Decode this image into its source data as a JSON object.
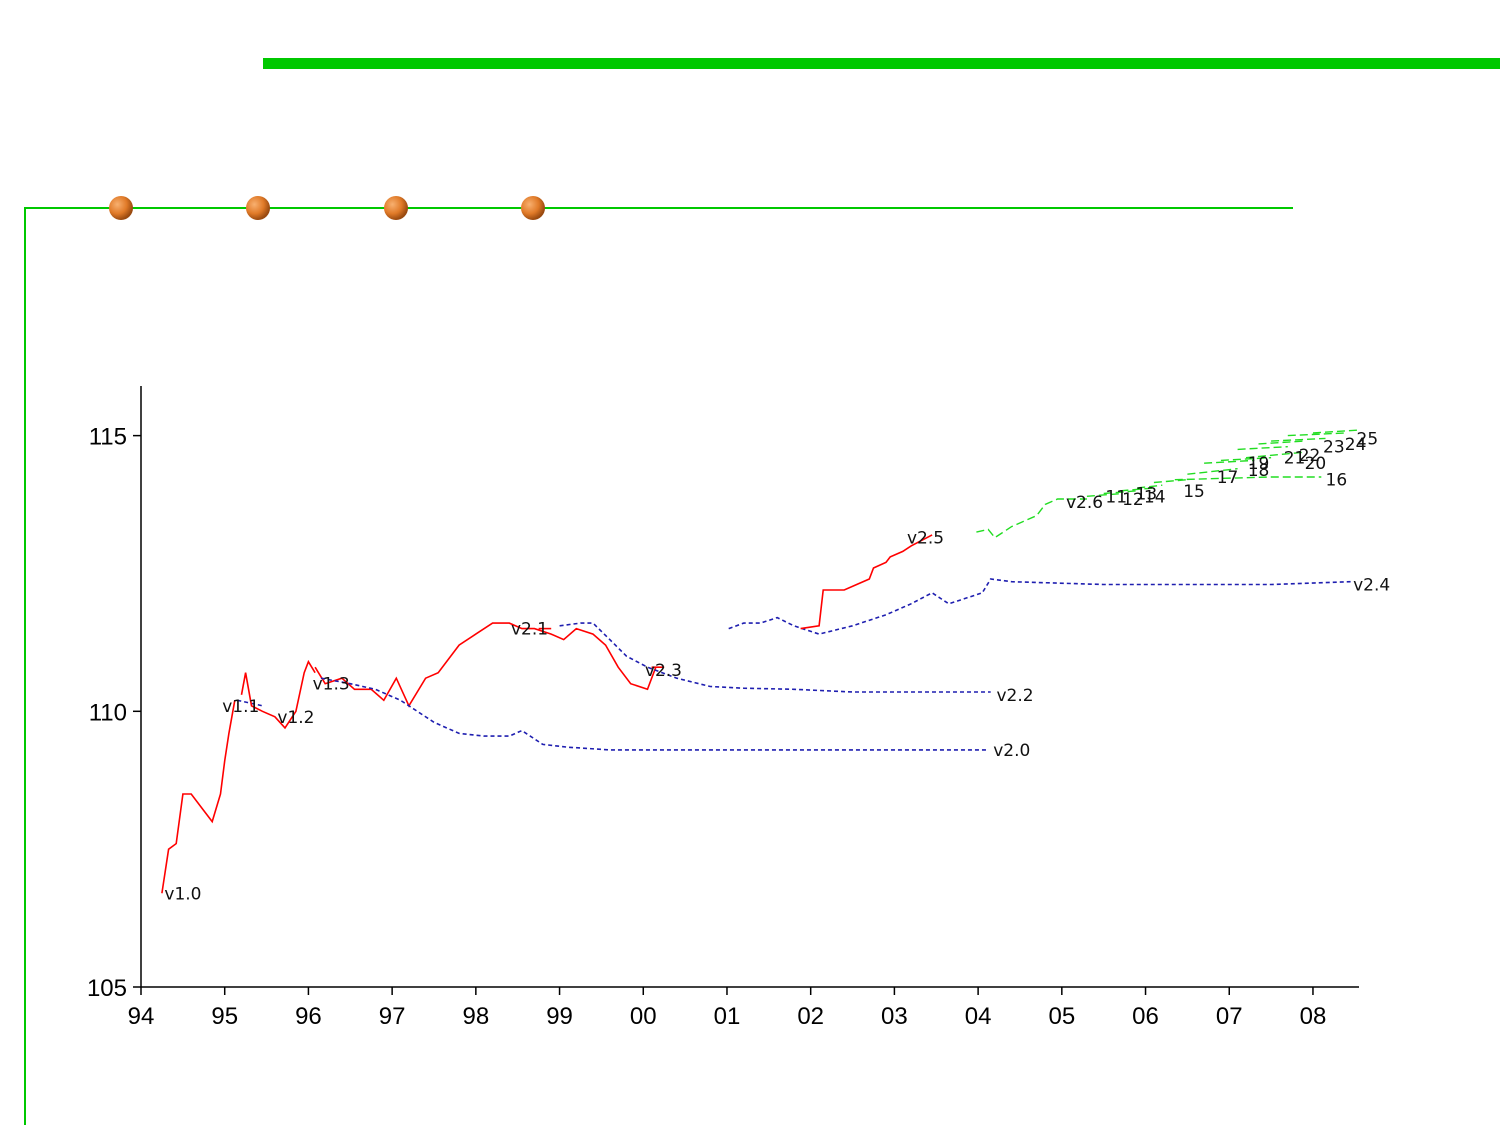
{
  "colors": {
    "slide_green": "#00c800",
    "bullet": "#e07a28",
    "axis": "#000000",
    "red_series": "#ff0000",
    "blue_series": "#1f1fb0",
    "green_series": "#22dd22"
  },
  "chart_data": {
    "type": "line",
    "title": "",
    "xlabel": "",
    "ylabel": "",
    "x_domain": [
      1994,
      2008.55
    ],
    "ylim": [
      105,
      115.9
    ],
    "x_ticks": [
      {
        "x": 1994,
        "label": "94"
      },
      {
        "x": 1995,
        "label": "95"
      },
      {
        "x": 1996,
        "label": "96"
      },
      {
        "x": 1997,
        "label": "97"
      },
      {
        "x": 1998,
        "label": "98"
      },
      {
        "x": 1999,
        "label": "99"
      },
      {
        "x": 2000,
        "label": "00"
      },
      {
        "x": 2001,
        "label": "01"
      },
      {
        "x": 2002,
        "label": "02"
      },
      {
        "x": 2003,
        "label": "03"
      },
      {
        "x": 2004,
        "label": "04"
      },
      {
        "x": 2005,
        "label": "05"
      },
      {
        "x": 2006,
        "label": "06"
      },
      {
        "x": 2007,
        "label": "07"
      },
      {
        "x": 2008,
        "label": "08"
      }
    ],
    "y_ticks": [
      {
        "y": 105,
        "label": "105"
      },
      {
        "y": 110,
        "label": "110"
      },
      {
        "y": 115,
        "label": "115"
      }
    ],
    "grid": false,
    "series": [
      {
        "name": "v1.0",
        "style": "red-solid",
        "label_at": [
          1994.28,
          106.7
        ],
        "points": [
          [
            1994.25,
            106.7
          ],
          [
            1994.33,
            107.5
          ],
          [
            1994.42,
            107.6
          ],
          [
            1994.5,
            108.5
          ],
          [
            1994.6,
            108.5
          ],
          [
            1994.75,
            108.2
          ],
          [
            1994.85,
            108.0
          ],
          [
            1994.95,
            108.5
          ],
          [
            1995.0,
            109.1
          ],
          [
            1995.05,
            109.6
          ],
          [
            1995.12,
            110.2
          ]
        ]
      },
      {
        "name": "v1.1",
        "style": "blue-dashed",
        "label_at": [
          1994.97,
          110.1
        ],
        "points": [
          [
            1995.15,
            110.2
          ],
          [
            1995.3,
            110.15
          ],
          [
            1995.45,
            110.1
          ]
        ]
      },
      {
        "name": "v1.2",
        "style": "red-solid",
        "label_at": [
          1995.63,
          109.9
        ],
        "points": [
          [
            1995.2,
            110.3
          ],
          [
            1995.25,
            110.7
          ],
          [
            1995.32,
            110.1
          ],
          [
            1995.45,
            110.0
          ],
          [
            1995.6,
            109.9
          ],
          [
            1995.72,
            109.7
          ],
          [
            1995.85,
            110.0
          ],
          [
            1995.95,
            110.7
          ],
          [
            1996.0,
            110.9
          ],
          [
            1996.08,
            110.7
          ]
        ]
      },
      {
        "name": "v1.3",
        "style": "red-solid",
        "label_at": [
          1996.05,
          110.5
        ],
        "points": [
          [
            1996.08,
            110.8
          ],
          [
            1996.2,
            110.5
          ],
          [
            1996.4,
            110.6
          ],
          [
            1996.55,
            110.4
          ],
          [
            1996.75,
            110.4
          ],
          [
            1996.9,
            110.2
          ],
          [
            1997.05,
            110.6
          ],
          [
            1997.2,
            110.1
          ],
          [
            1997.4,
            110.6
          ],
          [
            1997.55,
            110.7
          ],
          [
            1997.8,
            111.2
          ],
          [
            1998.0,
            111.4
          ],
          [
            1998.2,
            111.6
          ],
          [
            1998.4,
            111.6
          ],
          [
            1998.55,
            111.5
          ],
          [
            1998.7,
            111.5
          ],
          [
            1998.9,
            111.4
          ],
          [
            1999.05,
            111.3
          ],
          [
            1999.2,
            111.5
          ],
          [
            1999.4,
            111.4
          ],
          [
            1999.55,
            111.2
          ],
          [
            1999.7,
            110.8
          ],
          [
            1999.85,
            110.5
          ],
          [
            2000.05,
            110.4
          ],
          [
            2000.15,
            110.8
          ]
        ]
      },
      {
        "name": "v2.0",
        "style": "blue-dashed",
        "label_at": [
          2004.18,
          109.3
        ],
        "points": [
          [
            1996.15,
            110.6
          ],
          [
            1996.5,
            110.5
          ],
          [
            1996.8,
            110.4
          ],
          [
            1997.1,
            110.2
          ],
          [
            1997.5,
            109.8
          ],
          [
            1997.8,
            109.6
          ],
          [
            1998.1,
            109.55
          ],
          [
            1998.4,
            109.55
          ],
          [
            1998.55,
            109.65
          ],
          [
            1998.8,
            109.4
          ],
          [
            1999.1,
            109.35
          ],
          [
            1999.6,
            109.3
          ],
          [
            2000.5,
            109.3
          ],
          [
            2001.5,
            109.3
          ],
          [
            2002.5,
            109.3
          ],
          [
            2003.5,
            109.3
          ],
          [
            2004.12,
            109.3
          ]
        ]
      },
      {
        "name": "v2.1",
        "style": "red-solid",
        "label_at": [
          1998.42,
          111.5
        ],
        "points": [
          [
            1998.75,
            111.5
          ],
          [
            1998.9,
            111.5
          ]
        ]
      },
      {
        "name": "v2.2",
        "style": "blue-dashed",
        "label_at": [
          2004.22,
          110.3
        ],
        "points": [
          [
            1999.0,
            111.55
          ],
          [
            1999.25,
            111.6
          ],
          [
            1999.4,
            111.6
          ],
          [
            1999.6,
            111.3
          ],
          [
            1999.8,
            111.0
          ],
          [
            2000.05,
            110.8
          ],
          [
            2000.4,
            110.6
          ],
          [
            2000.8,
            110.45
          ],
          [
            2001.2,
            110.42
          ],
          [
            2001.8,
            110.4
          ],
          [
            2002.5,
            110.35
          ],
          [
            2003.5,
            110.35
          ],
          [
            2004.15,
            110.35
          ]
        ]
      },
      {
        "name": "v2.3",
        "style": "red-solid",
        "label_at": [
          2000.02,
          110.75
        ],
        "points": [
          [
            2000.1,
            110.8
          ],
          [
            2000.25,
            110.8
          ]
        ]
      },
      {
        "name": "v2.4",
        "style": "blue-dashed",
        "label_at": [
          2008.48,
          112.3
        ],
        "points": [
          [
            2001.02,
            111.5
          ],
          [
            2001.2,
            111.6
          ],
          [
            2001.4,
            111.6
          ],
          [
            2001.6,
            111.7
          ],
          [
            2001.8,
            111.55
          ],
          [
            2002.1,
            111.4
          ],
          [
            2002.5,
            111.55
          ],
          [
            2002.9,
            111.75
          ],
          [
            2003.2,
            111.95
          ],
          [
            2003.45,
            112.15
          ],
          [
            2003.65,
            111.95
          ],
          [
            2003.85,
            112.05
          ],
          [
            2004.05,
            112.15
          ],
          [
            2004.15,
            112.4
          ],
          [
            2004.4,
            112.35
          ],
          [
            2005.5,
            112.3
          ],
          [
            2006.5,
            112.3
          ],
          [
            2007.5,
            112.3
          ],
          [
            2008.45,
            112.35
          ]
        ]
      },
      {
        "name": "v2.5",
        "style": "red-solid",
        "label_at": [
          2003.15,
          113.15
        ],
        "points": [
          [
            2001.88,
            111.5
          ],
          [
            2002.1,
            111.55
          ],
          [
            2002.15,
            112.2
          ],
          [
            2002.4,
            112.2
          ],
          [
            2002.55,
            112.3
          ],
          [
            2002.7,
            112.4
          ],
          [
            2002.75,
            112.6
          ],
          [
            2002.9,
            112.7
          ],
          [
            2002.95,
            112.8
          ],
          [
            2003.1,
            112.9
          ],
          [
            2003.2,
            113.0
          ],
          [
            2003.45,
            113.2
          ]
        ]
      },
      {
        "name": "v2.6",
        "style": "green-dashed",
        "label_at": [
          2005.05,
          113.8
        ],
        "points": [
          [
            2003.98,
            113.25
          ],
          [
            2004.12,
            113.3
          ],
          [
            2004.2,
            113.15
          ],
          [
            2004.4,
            113.35
          ],
          [
            2004.7,
            113.55
          ],
          [
            2004.8,
            113.75
          ],
          [
            2004.95,
            113.85
          ],
          [
            2005.3,
            113.85
          ]
        ]
      },
      {
        "name": "11",
        "style": "green-dashed",
        "label_at": [
          2005.52,
          113.9
        ],
        "points": [
          [
            2005.3,
            113.9
          ],
          [
            2005.72,
            113.95
          ]
        ]
      },
      {
        "name": "12",
        "style": "green-dashed",
        "label_at": [
          2005.72,
          113.85
        ],
        "points": [
          [
            2005.5,
            113.95
          ],
          [
            2005.9,
            114.0
          ]
        ]
      },
      {
        "name": "13",
        "style": "green-dashed",
        "label_at": [
          2005.88,
          113.95
        ],
        "points": [
          [
            2005.7,
            114.0
          ],
          [
            2006.1,
            114.05
          ]
        ]
      },
      {
        "name": "14",
        "style": "green-dashed",
        "label_at": [
          2005.98,
          113.9
        ],
        "points": [
          [
            2005.9,
            114.05
          ],
          [
            2006.2,
            114.1
          ]
        ]
      },
      {
        "name": "15",
        "style": "green-dashed",
        "label_at": [
          2006.45,
          114.0
        ],
        "points": [
          [
            2006.1,
            114.15
          ],
          [
            2006.5,
            114.2
          ]
        ]
      },
      {
        "name": "16",
        "style": "green-dashed",
        "label_at": [
          2008.15,
          114.2
        ],
        "points": [
          [
            2006.35,
            114.2
          ],
          [
            2007.5,
            114.25
          ],
          [
            2008.1,
            114.25
          ]
        ]
      },
      {
        "name": "17",
        "style": "green-dashed",
        "label_at": [
          2006.85,
          114.25
        ],
        "points": [
          [
            2006.5,
            114.3
          ],
          [
            2007.1,
            114.4
          ]
        ]
      },
      {
        "name": "18",
        "style": "green-dashed",
        "label_at": [
          2007.22,
          114.38
        ],
        "points": [
          [
            2006.7,
            114.5
          ],
          [
            2007.3,
            114.55
          ]
        ]
      },
      {
        "name": "19",
        "style": "green-dashed",
        "label_at": [
          2007.22,
          114.5
        ],
        "points": [
          [
            2006.9,
            114.55
          ],
          [
            2007.5,
            114.6
          ]
        ]
      },
      {
        "name": "20",
        "style": "green-dashed",
        "label_at": [
          2007.9,
          114.5
        ],
        "points": [
          [
            2007.2,
            114.6
          ],
          [
            2007.9,
            114.7
          ]
        ]
      },
      {
        "name": "21",
        "style": "green-dashed",
        "label_at": [
          2007.65,
          114.6
        ],
        "points": [
          [
            2007.1,
            114.75
          ],
          [
            2007.7,
            114.8
          ]
        ]
      },
      {
        "name": "22",
        "style": "green-dashed",
        "label_at": [
          2007.83,
          114.65
        ],
        "points": [
          [
            2007.35,
            114.85
          ],
          [
            2007.9,
            114.9
          ]
        ]
      },
      {
        "name": "23",
        "style": "green-dashed",
        "label_at": [
          2008.12,
          114.8
        ],
        "points": [
          [
            2007.5,
            114.9
          ],
          [
            2008.15,
            114.95
          ]
        ]
      },
      {
        "name": "24",
        "style": "green-dashed",
        "label_at": [
          2008.38,
          114.85
        ],
        "points": [
          [
            2007.7,
            115.0
          ],
          [
            2008.4,
            115.05
          ]
        ]
      },
      {
        "name": "25",
        "style": "green-dashed",
        "label_at": [
          2008.52,
          114.95
        ],
        "points": [
          [
            2008.0,
            115.05
          ],
          [
            2008.55,
            115.1
          ]
        ]
      }
    ]
  }
}
